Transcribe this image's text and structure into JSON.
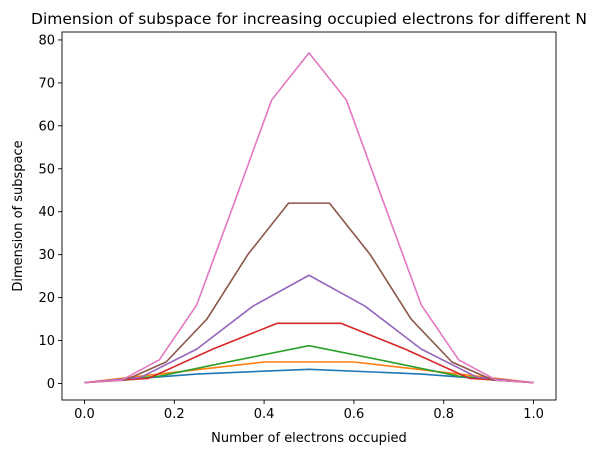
{
  "chart_data": {
    "type": "line",
    "title": "Dimension of subspace for increasing occupied electrons for different N",
    "xlabel": "Number of electrons occupied",
    "ylabel": "Dimension of subspace",
    "xlim": [
      -0.05,
      1.05
    ],
    "ylim": [
      -3.85,
      81.85
    ],
    "xticks": [
      0.0,
      0.2,
      0.4,
      0.6,
      0.8,
      1.0
    ],
    "xtick_labels": [
      "0.0",
      "0.2",
      "0.4",
      "0.6",
      "0.8",
      "1.0"
    ],
    "yticks": [
      0,
      10,
      20,
      30,
      40,
      50,
      60,
      70,
      80
    ],
    "ytick_labels": [
      "0",
      "10",
      "20",
      "30",
      "40",
      "50",
      "60",
      "70",
      "80"
    ],
    "grid": false,
    "series": [
      {
        "color": "#1f77b4",
        "x": [
          0,
          0.25,
          0.5,
          0.75,
          1
        ],
        "values": [
          0.2,
          2.2,
          3.3,
          2.2,
          0.2
        ]
      },
      {
        "color": "#ff7f0e",
        "x": [
          0,
          0.2,
          0.4,
          0.6,
          0.8,
          1
        ],
        "values": [
          0.2,
          2.6,
          5.0,
          5.0,
          2.6,
          0.2
        ]
      },
      {
        "color": "#2ca02c",
        "x": [
          0,
          0.1667,
          0.3333,
          0.5,
          0.6667,
          0.8333,
          1
        ],
        "values": [
          0.2,
          1.7,
          5.3,
          8.8,
          5.3,
          1.7,
          0.2
        ]
      },
      {
        "color": "#d62728",
        "x": [
          0,
          0.1429,
          0.2857,
          0.4286,
          0.5714,
          0.7143,
          0.8571,
          1
        ],
        "values": [
          0.2,
          1.2,
          8.0,
          14.0,
          14.0,
          8.0,
          1.2,
          0.2
        ]
      },
      {
        "color": "#9467bd",
        "x": [
          0,
          0.125,
          0.25,
          0.375,
          0.5,
          0.625,
          0.75,
          0.875,
          1
        ],
        "values": [
          0.2,
          1.4,
          8.0,
          18.0,
          25.2,
          18.0,
          8.0,
          1.4,
          0.2
        ]
      },
      {
        "color": "#8c564b",
        "x": [
          0,
          0.0909,
          0.1818,
          0.2727,
          0.3636,
          0.4545,
          0.5455,
          0.6364,
          0.7273,
          0.8182,
          0.9091,
          1
        ],
        "values": [
          0.2,
          0.8,
          5.0,
          15.0,
          30.0,
          42.0,
          42.0,
          30.0,
          15.0,
          5.0,
          0.8,
          0.2
        ]
      },
      {
        "color": "#e377c2",
        "x": [
          0,
          0.0833,
          0.1667,
          0.25,
          0.3333,
          0.4167,
          0.5,
          0.5833,
          0.6667,
          0.75,
          0.8333,
          0.9167,
          1
        ],
        "values": [
          0.2,
          0.8,
          5.5,
          18.3,
          42.0,
          66.0,
          77.0,
          66.0,
          42.0,
          18.3,
          5.5,
          0.8,
          0.2
        ]
      }
    ]
  }
}
